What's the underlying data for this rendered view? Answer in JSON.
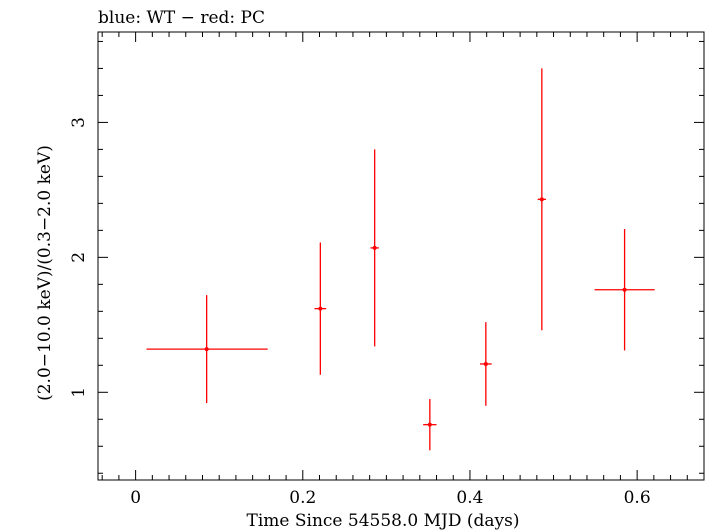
{
  "chart_data": {
    "type": "scatter",
    "title": "blue: WT − red: PC",
    "xlabel": "Time Since 54558.0 MJD (days)",
    "ylabel": "(2.0−10.0 keV)/(0.3−2.0 keV)",
    "xlim": [
      -0.045,
      0.68
    ],
    "ylim": [
      0.35,
      3.67
    ],
    "x_ticks": [
      0,
      0.2,
      0.4,
      0.6
    ],
    "x_tick_labels": [
      "0",
      "0.2",
      "0.4",
      "0.6"
    ],
    "y_ticks": [
      1,
      2,
      3
    ],
    "y_tick_labels": [
      "1",
      "2",
      "3"
    ],
    "grid": false,
    "series": [
      {
        "color": "#ff0000",
        "points": [
          {
            "x": 0.085,
            "y": 1.32,
            "xerr_lo": 0.072,
            "xerr_hi": 0.073,
            "yerr_lo": 0.4,
            "yerr_hi": 0.4
          },
          {
            "x": 0.221,
            "y": 1.62,
            "xerr_lo": 0.007,
            "xerr_hi": 0.007,
            "yerr_lo": 0.49,
            "yerr_hi": 0.49
          },
          {
            "x": 0.286,
            "y": 2.07,
            "xerr_lo": 0.005,
            "xerr_hi": 0.005,
            "yerr_lo": 0.73,
            "yerr_hi": 0.73
          },
          {
            "x": 0.352,
            "y": 0.76,
            "xerr_lo": 0.008,
            "xerr_hi": 0.008,
            "yerr_lo": 0.19,
            "yerr_hi": 0.19
          },
          {
            "x": 0.419,
            "y": 1.21,
            "xerr_lo": 0.007,
            "xerr_hi": 0.007,
            "yerr_lo": 0.31,
            "yerr_hi": 0.31
          },
          {
            "x": 0.486,
            "y": 2.43,
            "xerr_lo": 0.005,
            "xerr_hi": 0.005,
            "yerr_lo": 0.97,
            "yerr_hi": 0.97
          },
          {
            "x": 0.585,
            "y": 1.76,
            "xerr_lo": 0.036,
            "xerr_hi": 0.036,
            "yerr_lo": 0.45,
            "yerr_hi": 0.45
          }
        ]
      }
    ]
  }
}
